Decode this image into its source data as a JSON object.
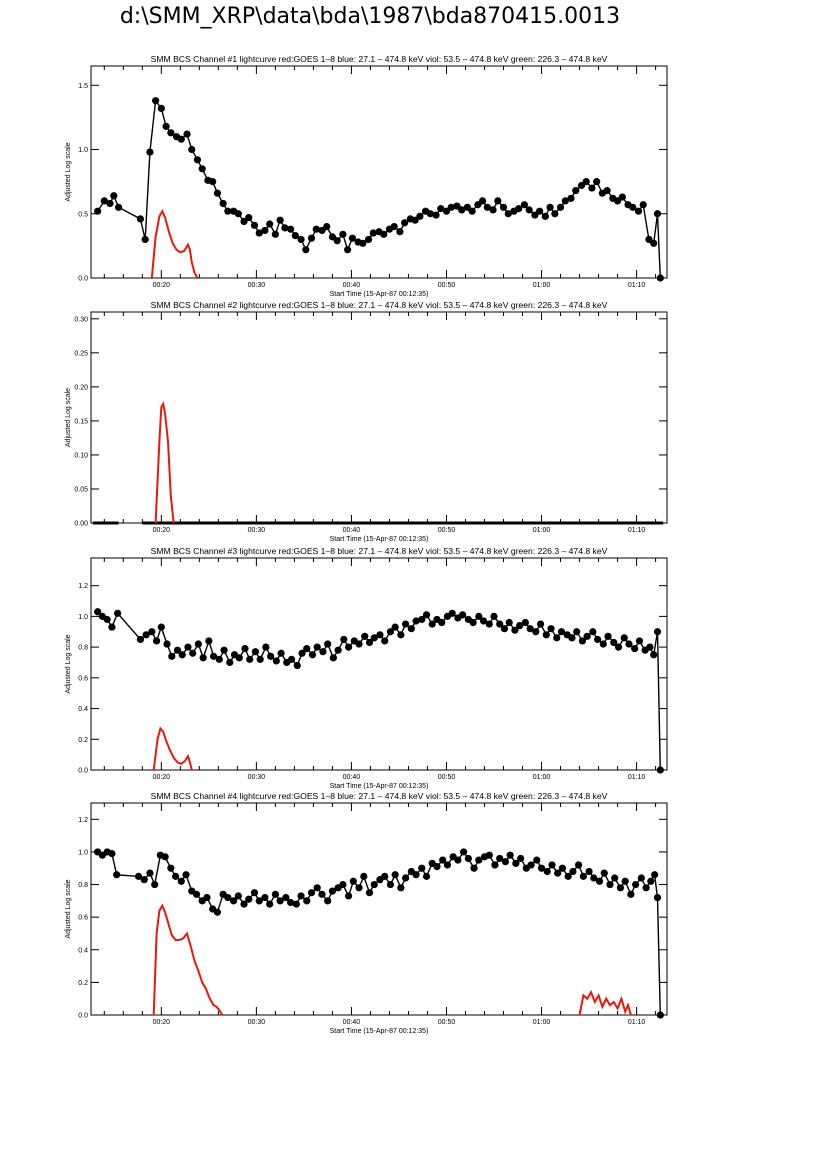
{
  "page": {
    "title": "d:\\SMM_XRP\\data\\bda\\1987\\bda870415.0013"
  },
  "colors": {
    "black_series": "#000000",
    "red_series": "#e8180c"
  },
  "shared_axis": {
    "x_range_min": [
      12.6,
      73.2
    ],
    "x_ticks_min": [
      20,
      30,
      40,
      50,
      60,
      70
    ],
    "x_tick_labels": [
      "00:20",
      "00:30",
      "00:40",
      "00:50",
      "01:00",
      "01:10"
    ],
    "xlabel": "Start Time (15-Apr-87 00:12:35)",
    "ylabel": "Adjusted Log scale"
  },
  "chart_data": [
    {
      "type": "line",
      "title": "SMM BCS Channel #1 lightcurve  red:GOES 1–8  blue: 27.1 – 474.8 keV  viol: 53.5 – 474.8 keV  green: 226.3 – 474.8 keV",
      "ylim": [
        0,
        1.65
      ],
      "yticks": [
        0.0,
        0.5,
        1.0,
        1.5
      ],
      "ytick_labels": [
        "0.0",
        "0.5",
        "1.0",
        "1.5"
      ],
      "series": [
        {
          "color": "black",
          "markers": true,
          "x_min": [
            13.3,
            14.0,
            14.6,
            15.0,
            15.5,
            17.8,
            18.3,
            18.8,
            19.4,
            20.0,
            20.5,
            21.0,
            21.6,
            22.1,
            22.7,
            23.2,
            23.8,
            24.3,
            24.9,
            25.4,
            25.9,
            26.5,
            27.0,
            27.6,
            28.1,
            28.7,
            29.2,
            29.8,
            30.3,
            30.9,
            31.4,
            32.0,
            32.5,
            33.0,
            33.6,
            34.1,
            34.7,
            35.2,
            35.8,
            36.3,
            36.9,
            37.4,
            38.0,
            38.5,
            39.1,
            39.6,
            40.1,
            40.7,
            41.2,
            41.8,
            42.3,
            42.9,
            43.4,
            44.0,
            44.5,
            45.1,
            45.6,
            46.2,
            46.7,
            47.2,
            47.8,
            48.3,
            48.9,
            49.4,
            50.0,
            50.5,
            51.1,
            51.6,
            52.2,
            52.7,
            53.3,
            53.8,
            54.3,
            54.9,
            55.4,
            56.0,
            56.5,
            57.1,
            57.6,
            58.2,
            58.7,
            59.3,
            59.8,
            60.4,
            60.9,
            61.4,
            62.0,
            62.5,
            63.1,
            63.6,
            64.2,
            64.7,
            65.3,
            65.8,
            66.4,
            66.9,
            67.5,
            68.0,
            68.5,
            69.1,
            69.6,
            70.2,
            70.7,
            71.3,
            71.8,
            72.2,
            72.5
          ],
          "y": [
            0.52,
            0.6,
            0.58,
            0.64,
            0.55,
            0.46,
            0.3,
            0.98,
            1.38,
            1.32,
            1.18,
            1.13,
            1.1,
            1.08,
            1.12,
            1.0,
            0.92,
            0.85,
            0.76,
            0.75,
            0.66,
            0.58,
            0.52,
            0.52,
            0.5,
            0.44,
            0.47,
            0.41,
            0.35,
            0.37,
            0.42,
            0.34,
            0.45,
            0.39,
            0.38,
            0.33,
            0.3,
            0.22,
            0.31,
            0.38,
            0.37,
            0.4,
            0.32,
            0.29,
            0.34,
            0.22,
            0.31,
            0.28,
            0.27,
            0.3,
            0.35,
            0.36,
            0.34,
            0.38,
            0.4,
            0.36,
            0.43,
            0.46,
            0.45,
            0.48,
            0.52,
            0.5,
            0.49,
            0.54,
            0.52,
            0.55,
            0.56,
            0.53,
            0.55,
            0.52,
            0.57,
            0.6,
            0.55,
            0.53,
            0.6,
            0.55,
            0.5,
            0.52,
            0.54,
            0.57,
            0.53,
            0.49,
            0.52,
            0.48,
            0.55,
            0.5,
            0.55,
            0.6,
            0.62,
            0.68,
            0.72,
            0.75,
            0.7,
            0.75,
            0.66,
            0.68,
            0.62,
            0.6,
            0.63,
            0.57,
            0.55,
            0.52,
            0.57,
            0.3,
            0.27,
            0.5,
            0.0
          ]
        },
        {
          "color": "red",
          "markers": false,
          "x_min": [
            19.0,
            19.4,
            19.8,
            20.1,
            20.4,
            20.8,
            21.2,
            21.6,
            22.0,
            22.4,
            22.8,
            23.0,
            23.2,
            23.5,
            23.8
          ],
          "y": [
            0.0,
            0.32,
            0.48,
            0.52,
            0.47,
            0.36,
            0.27,
            0.22,
            0.2,
            0.21,
            0.26,
            0.22,
            0.12,
            0.04,
            0.0
          ]
        }
      ]
    },
    {
      "type": "line",
      "title": "SMM BCS Channel #2 lightcurve  red:GOES 1–8  blue: 27.1 – 474.8 keV  viol: 53.5 – 474.8 keV  green: 226.3 – 474.8 keV",
      "ylim": [
        0,
        0.31
      ],
      "yticks": [
        0.0,
        0.05,
        0.1,
        0.15,
        0.2,
        0.25,
        0.3
      ],
      "ytick_labels": [
        "0.00",
        "0.05",
        "0.10",
        "0.15",
        "0.20",
        "0.25",
        "0.30"
      ],
      "series": [
        {
          "color": "black",
          "markers": false,
          "segments": [
            [
              12.8,
              15.5
            ],
            [
              18.0,
              72.8
            ]
          ],
          "y": 0.0
        },
        {
          "color": "red",
          "markers": false,
          "x_min": [
            19.4,
            19.8,
            20.0,
            20.2,
            20.4,
            20.7,
            21.0,
            21.3
          ],
          "y": [
            0.0,
            0.12,
            0.17,
            0.175,
            0.16,
            0.12,
            0.04,
            0.0
          ]
        }
      ]
    },
    {
      "type": "line",
      "title": "SMM BCS Channel #3 lightcurve  red:GOES 1–8  blue: 27.1 – 474.8 keV  viol: 53.5 – 474.8 keV  green: 226.3 – 474.8 keV",
      "ylim": [
        0,
        1.38
      ],
      "yticks": [
        0.0,
        0.2,
        0.4,
        0.6,
        0.8,
        1.0,
        1.2
      ],
      "ytick_labels": [
        "0.0",
        "0.2",
        "0.4",
        "0.6",
        "0.8",
        "1.0",
        "1.2"
      ],
      "series": [
        {
          "color": "black",
          "markers": true,
          "x_min": [
            13.3,
            13.8,
            14.3,
            14.8,
            15.4,
            17.8,
            18.4,
            19.0,
            19.5,
            20.0,
            20.6,
            21.1,
            21.7,
            22.2,
            22.8,
            23.3,
            23.9,
            24.4,
            25.0,
            25.5,
            26.1,
            26.6,
            27.2,
            27.7,
            28.2,
            28.8,
            29.3,
            29.9,
            30.4,
            31.0,
            31.5,
            32.1,
            32.6,
            33.2,
            33.7,
            34.3,
            34.8,
            35.3,
            35.9,
            36.4,
            37.0,
            37.5,
            38.1,
            38.6,
            39.2,
            39.7,
            40.3,
            40.8,
            41.4,
            41.9,
            42.4,
            43.0,
            43.5,
            44.1,
            44.6,
            45.2,
            45.7,
            46.3,
            46.8,
            47.4,
            47.9,
            48.5,
            49.0,
            49.5,
            50.1,
            50.6,
            51.2,
            51.7,
            52.3,
            52.8,
            53.4,
            53.9,
            54.5,
            55.0,
            55.6,
            56.1,
            56.6,
            57.2,
            57.7,
            58.3,
            58.8,
            59.4,
            59.9,
            60.5,
            61.0,
            61.6,
            62.1,
            62.7,
            63.2,
            63.7,
            64.3,
            64.8,
            65.4,
            65.9,
            66.5,
            67.0,
            67.6,
            68.1,
            68.7,
            69.2,
            69.8,
            70.3,
            70.9,
            71.4,
            71.8,
            72.2,
            72.5
          ],
          "y": [
            1.03,
            1.0,
            0.98,
            0.93,
            1.02,
            0.85,
            0.88,
            0.9,
            0.84,
            0.93,
            0.82,
            0.74,
            0.78,
            0.75,
            0.8,
            0.76,
            0.82,
            0.73,
            0.84,
            0.74,
            0.72,
            0.78,
            0.7,
            0.75,
            0.73,
            0.79,
            0.72,
            0.77,
            0.72,
            0.8,
            0.74,
            0.71,
            0.76,
            0.7,
            0.72,
            0.68,
            0.76,
            0.79,
            0.75,
            0.8,
            0.77,
            0.82,
            0.73,
            0.78,
            0.85,
            0.8,
            0.84,
            0.82,
            0.87,
            0.83,
            0.86,
            0.88,
            0.84,
            0.9,
            0.93,
            0.88,
            0.95,
            0.92,
            0.97,
            0.98,
            1.01,
            0.95,
            0.98,
            0.96,
            1.0,
            1.02,
            0.99,
            1.01,
            0.98,
            0.96,
            1.0,
            0.97,
            0.95,
            1.0,
            0.95,
            0.92,
            0.96,
            0.91,
            0.94,
            0.96,
            0.92,
            0.9,
            0.95,
            0.88,
            0.92,
            0.86,
            0.9,
            0.88,
            0.86,
            0.9,
            0.84,
            0.87,
            0.9,
            0.85,
            0.82,
            0.87,
            0.83,
            0.8,
            0.86,
            0.82,
            0.79,
            0.84,
            0.78,
            0.8,
            0.75,
            0.9,
            0.0
          ]
        },
        {
          "color": "red",
          "markers": false,
          "x_min": [
            19.2,
            19.6,
            19.9,
            20.2,
            20.5,
            20.9,
            21.3,
            21.7,
            22.1,
            22.5,
            22.8,
            23.0,
            23.2
          ],
          "y": [
            0.0,
            0.2,
            0.27,
            0.25,
            0.19,
            0.13,
            0.08,
            0.05,
            0.04,
            0.06,
            0.09,
            0.05,
            0.0
          ]
        }
      ]
    },
    {
      "type": "line",
      "title": "SMM BCS Channel #4 lightcurve  red:GOES 1–8  blue: 27.1 – 474.8 keV  viol: 53.5 – 474.8 keV  green: 226.3 – 474.8 keV",
      "ylim": [
        0,
        1.3
      ],
      "yticks": [
        0.0,
        0.2,
        0.4,
        0.6,
        0.8,
        1.0,
        1.2
      ],
      "ytick_labels": [
        "0.0",
        "0.2",
        "0.4",
        "0.6",
        "0.8",
        "1.0",
        "1.2"
      ],
      "series": [
        {
          "color": "black",
          "markers": true,
          "x_min": [
            13.3,
            13.8,
            14.3,
            14.8,
            15.3,
            17.6,
            18.2,
            18.8,
            19.3,
            19.9,
            20.4,
            21.0,
            21.5,
            22.1,
            22.6,
            23.2,
            23.7,
            24.3,
            24.8,
            25.4,
            25.9,
            26.5,
            27.0,
            27.6,
            28.1,
            28.7,
            29.2,
            29.8,
            30.3,
            30.9,
            31.4,
            32.0,
            32.5,
            33.1,
            33.6,
            34.2,
            34.7,
            35.3,
            35.8,
            36.4,
            36.9,
            37.5,
            38.0,
            38.6,
            39.1,
            39.7,
            40.2,
            40.8,
            41.3,
            41.9,
            42.4,
            43.0,
            43.5,
            44.1,
            44.6,
            45.2,
            45.7,
            46.3,
            46.8,
            47.4,
            47.9,
            48.5,
            49.0,
            49.6,
            50.1,
            50.7,
            51.2,
            51.8,
            52.3,
            52.9,
            53.4,
            54.0,
            54.5,
            55.1,
            55.6,
            56.2,
            56.7,
            57.3,
            57.8,
            58.4,
            58.9,
            59.5,
            60.0,
            60.6,
            61.1,
            61.7,
            62.2,
            62.8,
            63.3,
            63.9,
            64.4,
            65.0,
            65.5,
            66.1,
            66.6,
            67.2,
            67.7,
            68.3,
            68.8,
            69.4,
            69.9,
            70.5,
            71.0,
            71.5,
            71.9,
            72.2,
            72.5
          ],
          "y": [
            1.0,
            0.98,
            1.0,
            0.99,
            0.86,
            0.85,
            0.83,
            0.87,
            0.8,
            0.98,
            0.97,
            0.9,
            0.85,
            0.82,
            0.86,
            0.76,
            0.74,
            0.7,
            0.72,
            0.65,
            0.63,
            0.74,
            0.72,
            0.7,
            0.73,
            0.68,
            0.71,
            0.75,
            0.7,
            0.72,
            0.68,
            0.74,
            0.7,
            0.72,
            0.69,
            0.68,
            0.73,
            0.7,
            0.75,
            0.78,
            0.74,
            0.7,
            0.76,
            0.78,
            0.8,
            0.73,
            0.82,
            0.78,
            0.85,
            0.75,
            0.8,
            0.83,
            0.85,
            0.8,
            0.86,
            0.78,
            0.84,
            0.88,
            0.86,
            0.9,
            0.85,
            0.93,
            0.91,
            0.95,
            0.92,
            0.97,
            0.95,
            1.0,
            0.96,
            0.9,
            0.95,
            0.97,
            0.98,
            0.92,
            0.96,
            0.94,
            0.98,
            0.93,
            0.96,
            0.9,
            0.92,
            0.95,
            0.9,
            0.88,
            0.92,
            0.87,
            0.9,
            0.85,
            0.88,
            0.92,
            0.85,
            0.88,
            0.84,
            0.82,
            0.87,
            0.8,
            0.84,
            0.78,
            0.82,
            0.74,
            0.8,
            0.84,
            0.78,
            0.82,
            0.86,
            0.72,
            0.0
          ]
        },
        {
          "color": "red",
          "markers": false,
          "x_min": [
            19.2,
            19.5,
            19.8,
            20.1,
            20.4,
            20.8,
            21.1,
            21.5,
            21.9,
            22.3,
            22.7,
            23.1,
            23.5,
            23.9,
            24.3,
            24.7,
            25.1,
            25.5,
            25.8,
            26.1,
            26.4
          ],
          "y": [
            0.0,
            0.5,
            0.64,
            0.67,
            0.63,
            0.55,
            0.49,
            0.46,
            0.46,
            0.47,
            0.5,
            0.42,
            0.33,
            0.27,
            0.2,
            0.16,
            0.1,
            0.06,
            0.05,
            0.03,
            0.0
          ]
        },
        {
          "color": "red",
          "markers": false,
          "x_min": [
            64.0,
            64.4,
            64.8,
            65.2,
            65.6,
            66.0,
            66.4,
            66.8,
            67.2,
            67.6,
            68.0,
            68.4,
            68.8,
            69.1,
            69.4
          ],
          "y": [
            0.0,
            0.12,
            0.1,
            0.14,
            0.08,
            0.12,
            0.05,
            0.1,
            0.06,
            0.08,
            0.04,
            0.1,
            0.02,
            0.06,
            0.0
          ]
        }
      ]
    }
  ]
}
